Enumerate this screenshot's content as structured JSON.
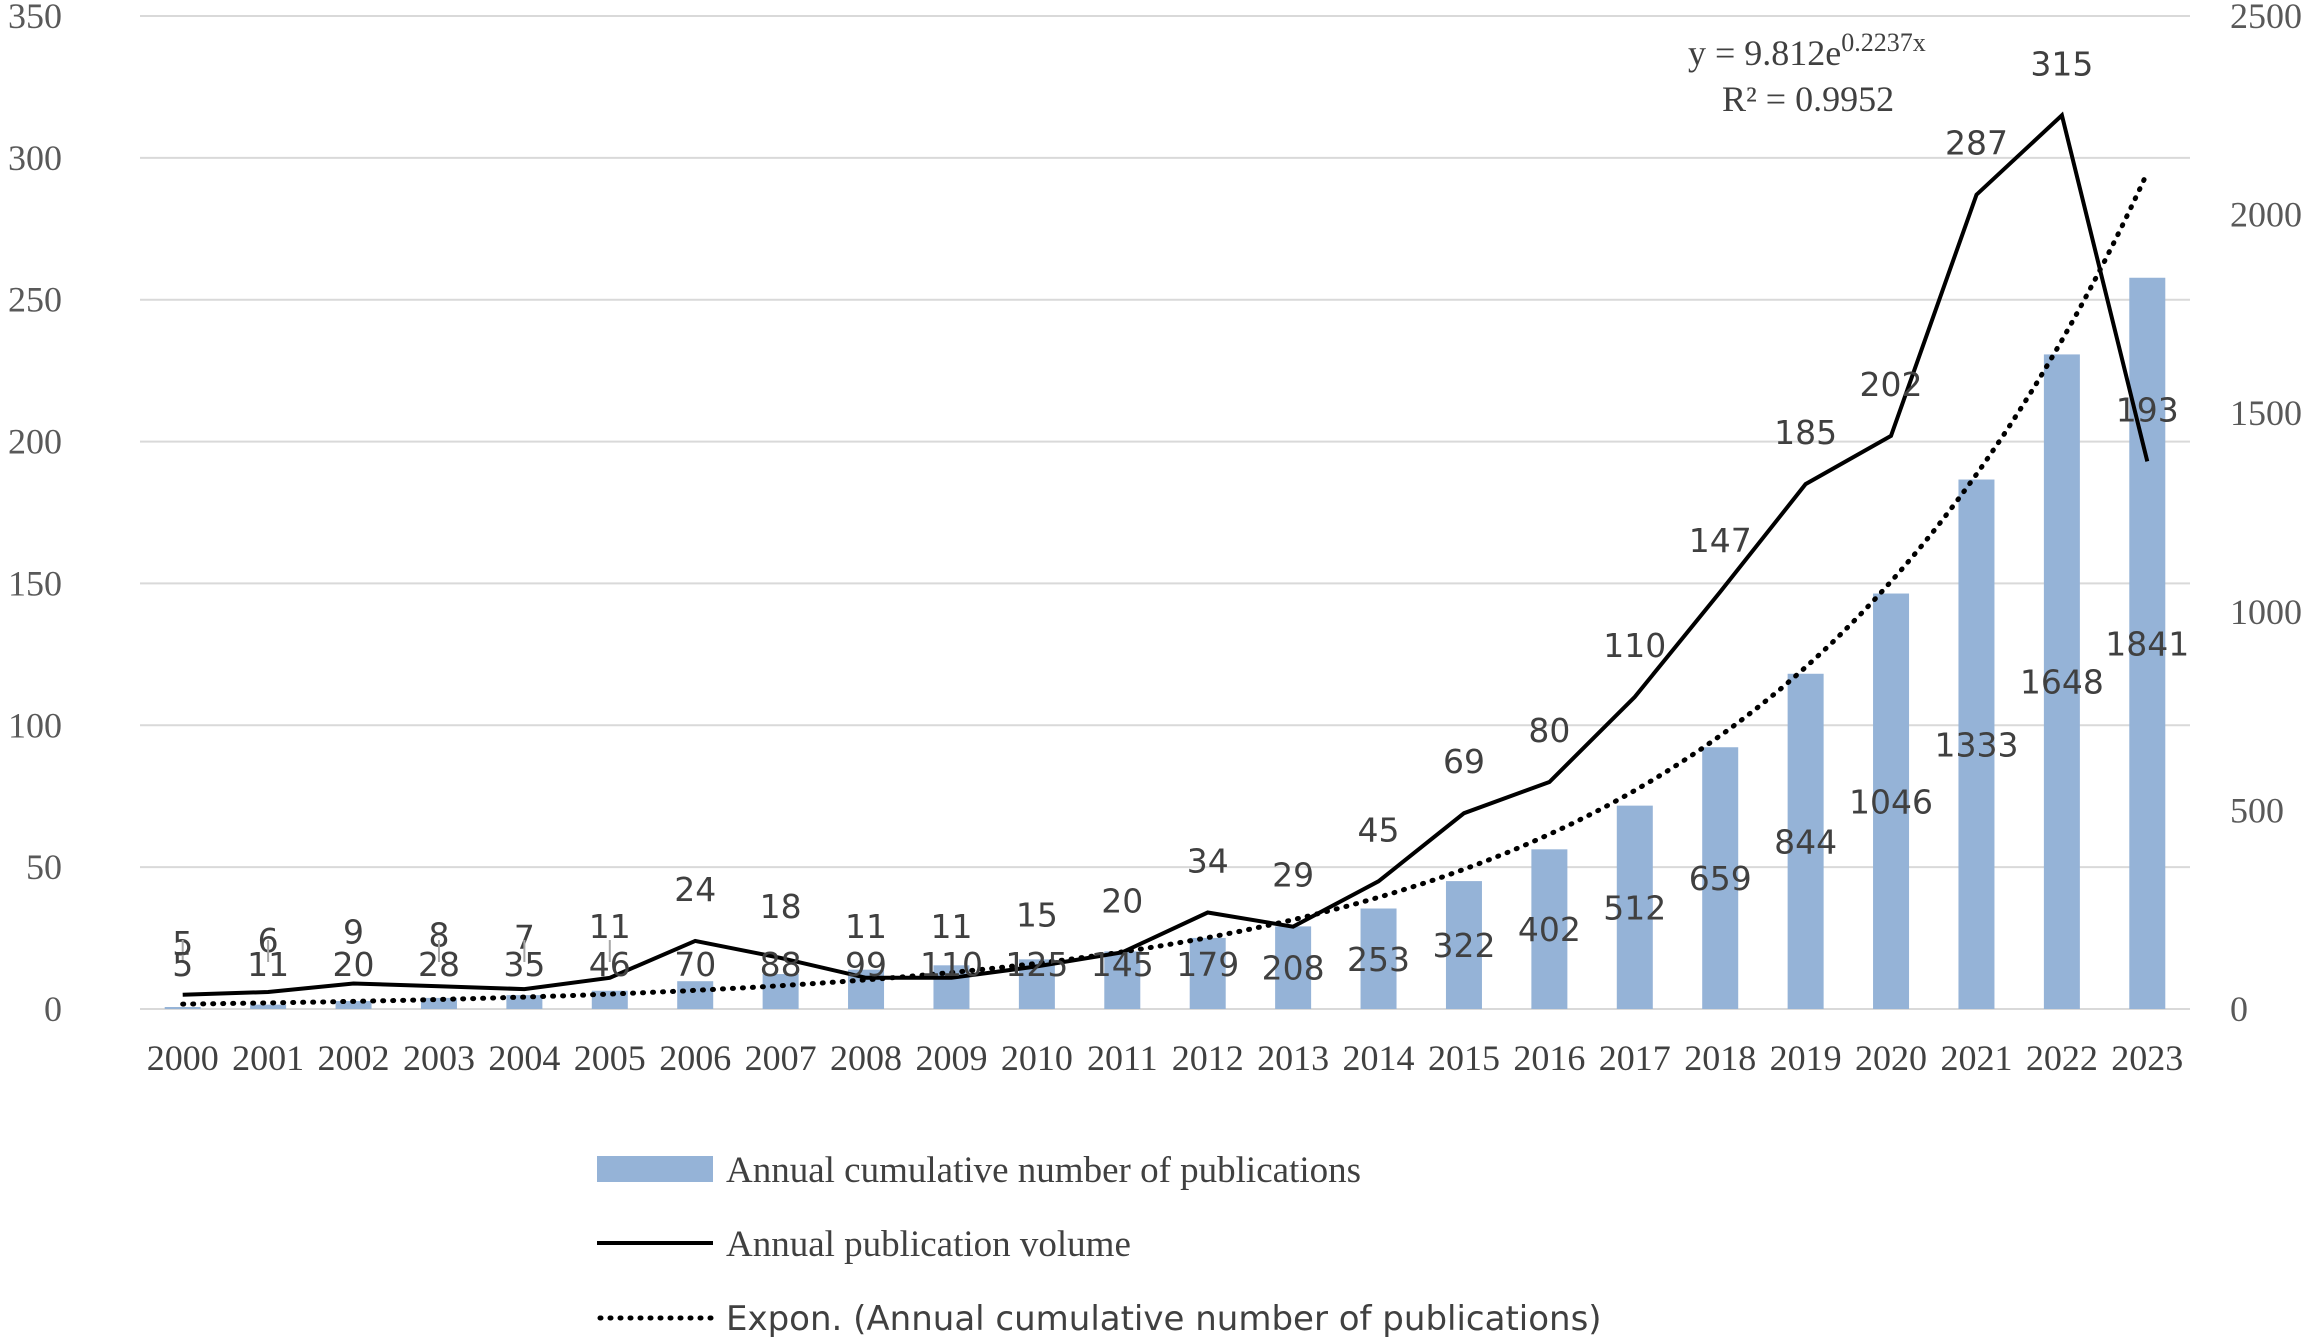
{
  "chart_data": {
    "type": "bar+line",
    "categories": [
      "2000",
      "2001",
      "2002",
      "2003",
      "2004",
      "2005",
      "2006",
      "2007",
      "2008",
      "2009",
      "2010",
      "2011",
      "2012",
      "2013",
      "2014",
      "2015",
      "2016",
      "2017",
      "2018",
      "2019",
      "2020",
      "2021",
      "2022",
      "2023"
    ],
    "series": [
      {
        "name": "Annual cumulative number of publications",
        "type": "bar",
        "axis": "right",
        "color": "#95b3d7",
        "values": [
          5,
          11,
          20,
          28,
          35,
          46,
          70,
          88,
          99,
          110,
          125,
          145,
          179,
          208,
          253,
          322,
          402,
          512,
          659,
          844,
          1046,
          1333,
          1648,
          1841
        ]
      },
      {
        "name": "Annual publication volume",
        "type": "line",
        "axis": "left",
        "color": "#000000",
        "values": [
          5,
          6,
          9,
          8,
          7,
          11,
          24,
          18,
          11,
          11,
          15,
          20,
          34,
          29,
          45,
          69,
          80,
          110,
          147,
          185,
          202,
          287,
          315,
          193
        ]
      },
      {
        "name": "Expon. (Annual cumulative number of publications)",
        "type": "trendline-exponential",
        "axis": "right",
        "color": "#000000",
        "a": 9.812,
        "b": 0.2237
      }
    ],
    "left_axis": {
      "min": 0,
      "max": 350,
      "step": 50,
      "ticks": [
        "0",
        "50",
        "100",
        "150",
        "200",
        "250",
        "300",
        "350"
      ]
    },
    "right_axis": {
      "min": 0,
      "max": 2500,
      "step": 500,
      "ticks": [
        "0",
        "500",
        "1000",
        "1500",
        "2000",
        "2500"
      ]
    },
    "trendline_equation": {
      "prefix": "y = 9.812e",
      "exponent": "0.2237x",
      "r_squared": "R² = 0.9952"
    },
    "grid": true,
    "legend_position": "bottom"
  }
}
